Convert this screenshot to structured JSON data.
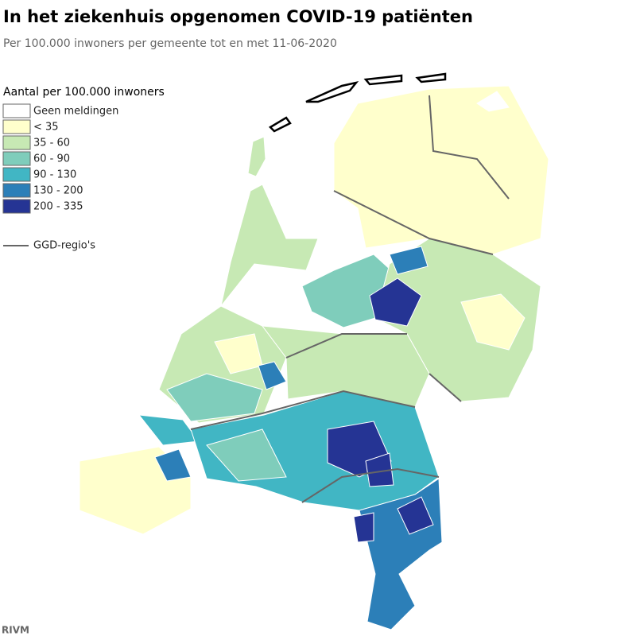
{
  "header": {
    "title": "In het ziekenhuis opgenomen COVID-19 patiënten",
    "subtitle": "Per 100.000 inwoners per gemeente tot en met 11-06-2020"
  },
  "legend": {
    "title": "Aantal per 100.000 inwoners",
    "items": [
      {
        "label": "Geen meldingen",
        "color": "#ffffff"
      },
      {
        "label": "< 35",
        "color": "#ffffcc"
      },
      {
        "label": "35 - 60",
        "color": "#c7e9b4"
      },
      {
        "label": "60 - 90",
        "color": "#7fcdbb"
      },
      {
        "label": "90 - 130",
        "color": "#41b6c4"
      },
      {
        "label": "130 - 200",
        "color": "#2c7fb8"
      },
      {
        "label": "200 - 335",
        "color": "#253494"
      }
    ],
    "boundary_label": "GGD-regio's"
  },
  "source": "RIVM"
}
